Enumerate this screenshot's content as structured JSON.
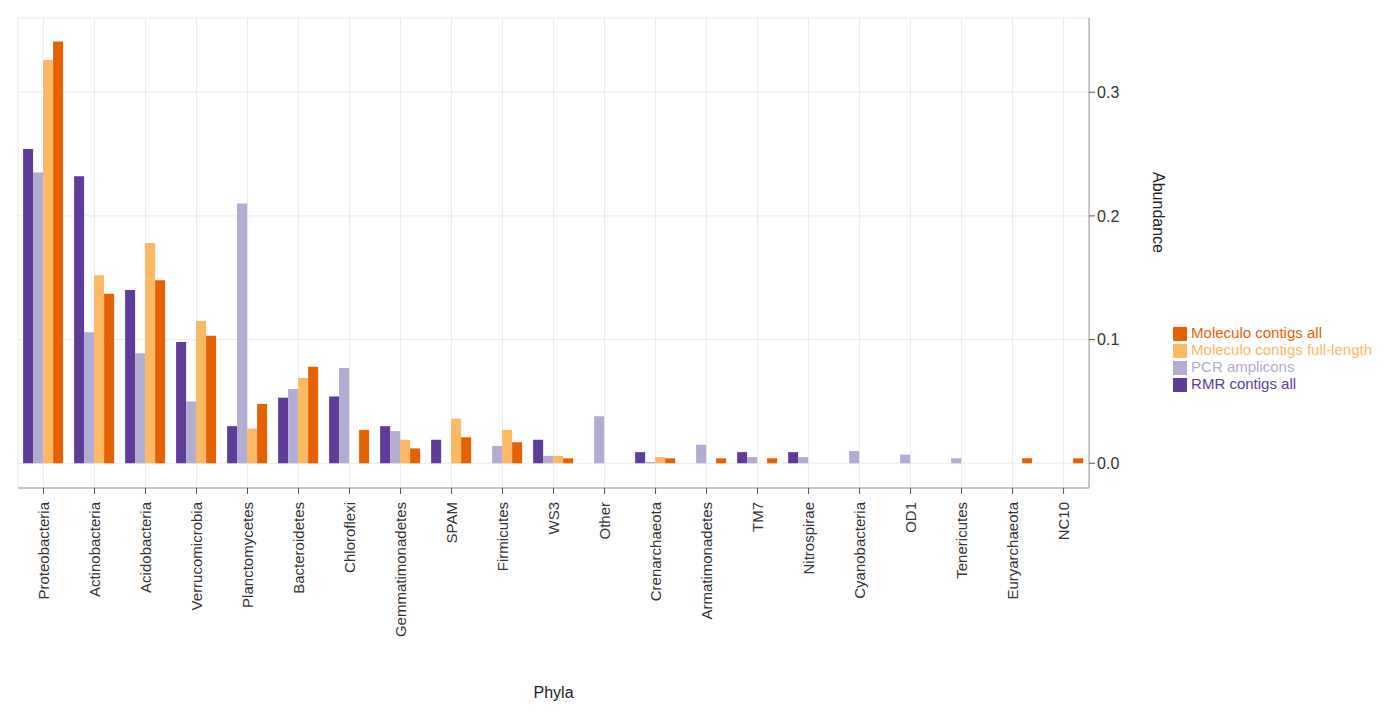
{
  "chart_data": {
    "type": "bar",
    "x_label": "Phyla",
    "y_label": "Abundance",
    "categories": [
      "Proteobacteria",
      "Actinobacteria",
      "Acidobacteria",
      "Verrucomicrobia",
      "Planctomycetes",
      "Bacteroidetes",
      "Chloroflexi",
      "Gemmatimonadetes",
      "SPAM",
      "Firmicutes",
      "WS3",
      "Other",
      "Crenarchaeota",
      "Armatimonadetes",
      "TM7",
      "Nitrospirae",
      "Cyanobacteria",
      "OD1",
      "Tenericutes",
      "Euryarchaeota",
      "NC10"
    ],
    "series": [
      {
        "name": "RMR contigs all",
        "color": "#5e3c99",
        "values": [
          0.254,
          0.232,
          0.14,
          0.098,
          0.03,
          0.053,
          0.054,
          0.03,
          0.019,
          0,
          0.019,
          0,
          0.009,
          0,
          0.009,
          0.009,
          0,
          0,
          0,
          0,
          0
        ]
      },
      {
        "name": "PCR amplicons",
        "color": "#b2abd2",
        "values": [
          0.235,
          0.106,
          0.089,
          0.05,
          0.21,
          0.06,
          0.077,
          0.026,
          0,
          0.014,
          0.006,
          0.038,
          0.001,
          0.015,
          0.005,
          0.005,
          0.01,
          0.007,
          0.004,
          0,
          0
        ]
      },
      {
        "name": "Moleculo contigs full-length",
        "color": "#fdb863",
        "values": [
          0.326,
          0.152,
          0.178,
          0.115,
          0.028,
          0.069,
          0,
          0.019,
          0.036,
          0.027,
          0.006,
          0,
          0.005,
          0,
          0,
          0,
          0,
          0,
          0,
          0,
          0
        ]
      },
      {
        "name": "Moleculo contigs all",
        "color": "#e66101",
        "values": [
          0.341,
          0.137,
          0.148,
          0.103,
          0.048,
          0.078,
          0.027,
          0.012,
          0.021,
          0.017,
          0.004,
          0,
          0.004,
          0.004,
          0.004,
          0,
          0,
          0,
          0,
          0.004,
          0.004
        ]
      }
    ],
    "ylim": [
      -0.02,
      0.36
    ],
    "yticks": [
      {
        "value": 0,
        "label": "0.0"
      },
      0.1,
      0.2,
      0.3
    ],
    "grid": true,
    "legend": "right"
  }
}
